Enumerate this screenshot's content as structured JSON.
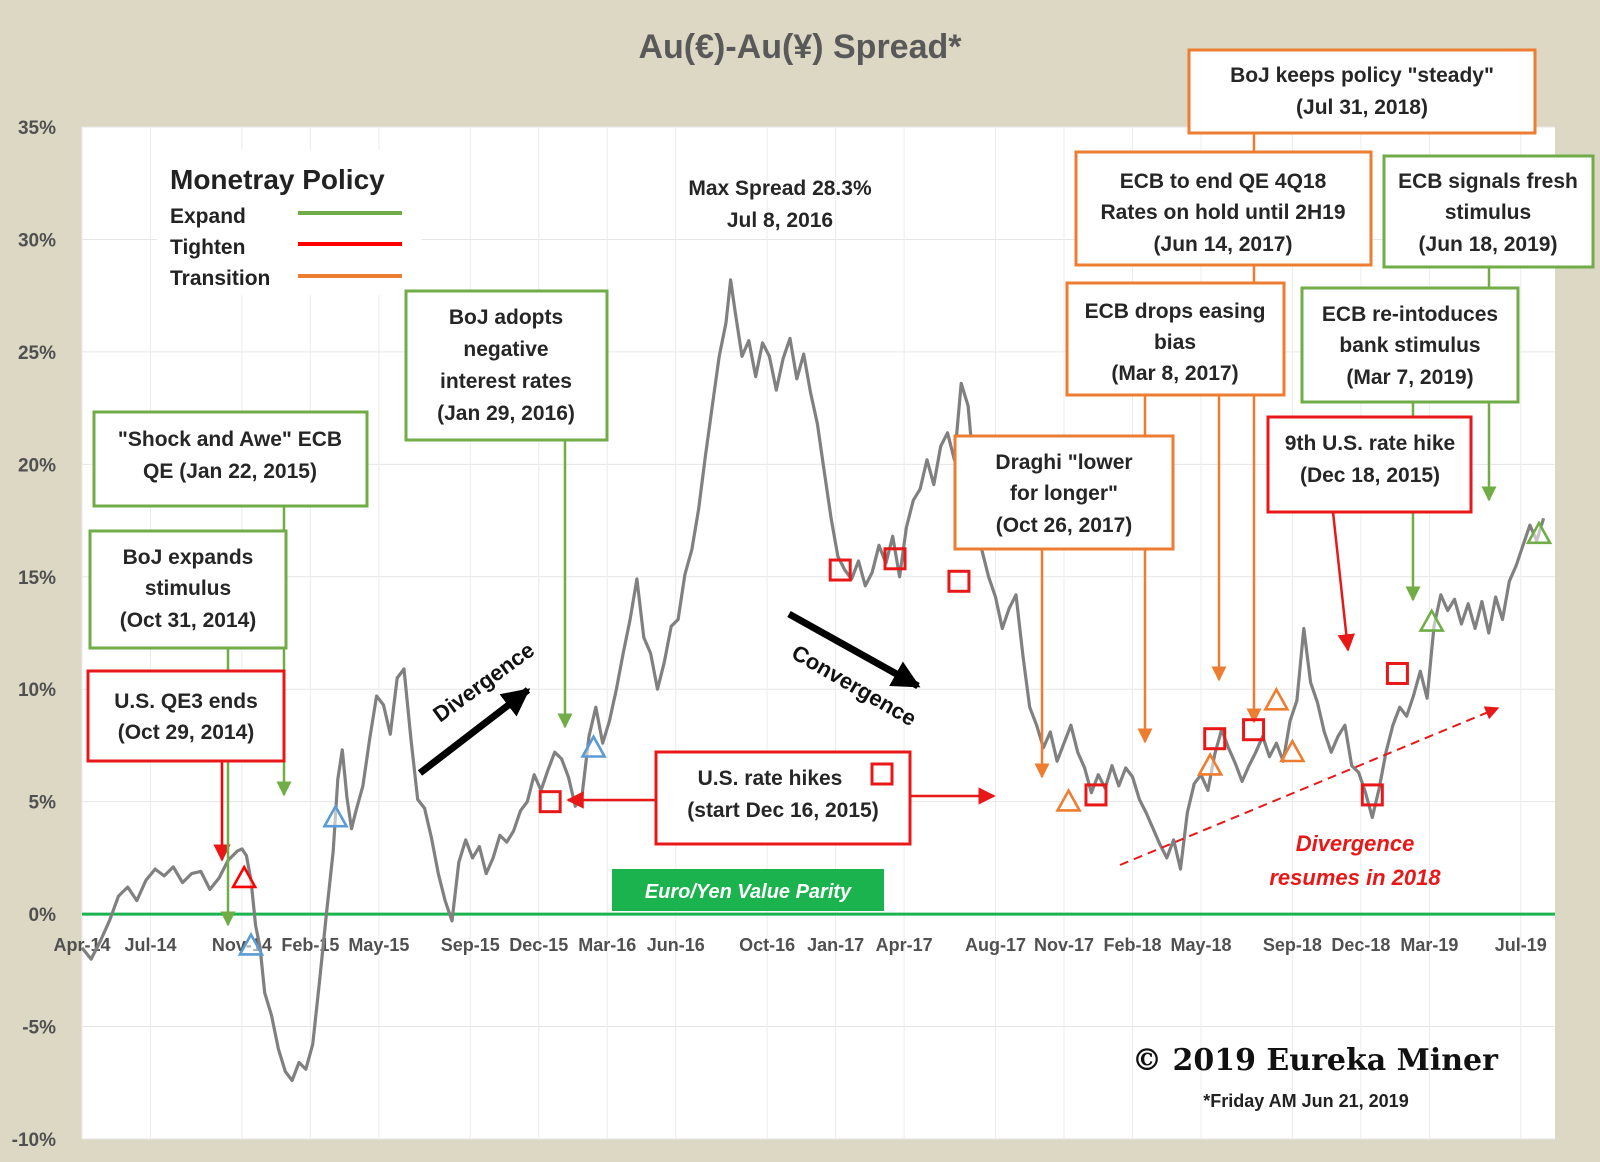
{
  "chart_data": {
    "type": "line",
    "title": "Au(€)-Au(¥) Spread*",
    "ylim": [
      -10,
      35
    ],
    "yticks": [
      35,
      30,
      25,
      20,
      15,
      10,
      5,
      0,
      -5,
      -10
    ],
    "ytick_labels": [
      "35%",
      "30%",
      "25%",
      "20%",
      "15%",
      "10%",
      "5%",
      "0%",
      "-5%",
      "-10%"
    ],
    "x_range": [
      "2014-04",
      "2019-07"
    ],
    "xticks": [
      {
        "label": "Apr-14",
        "month": 0
      },
      {
        "label": "Jul-14",
        "month": 3
      },
      {
        "label": "Nov-14",
        "month": 7
      },
      {
        "label": "Feb-15",
        "month": 10
      },
      {
        "label": "May-15",
        "month": 13
      },
      {
        "label": "Sep-15",
        "month": 17
      },
      {
        "label": "Dec-15",
        "month": 20
      },
      {
        "label": "Mar-16",
        "month": 23
      },
      {
        "label": "Jun-16",
        "month": 26
      },
      {
        "label": "Oct-16",
        "month": 30
      },
      {
        "label": "Jan-17",
        "month": 33
      },
      {
        "label": "Apr-17",
        "month": 36
      },
      {
        "label": "Aug-17",
        "month": 40
      },
      {
        "label": "Nov-17",
        "month": 43
      },
      {
        "label": "Feb-18",
        "month": 46
      },
      {
        "label": "May-18",
        "month": 49
      },
      {
        "label": "Sep-18",
        "month": 53
      },
      {
        "label": "Dec-18",
        "month": 56
      },
      {
        "label": "Mar-19",
        "month": 59
      },
      {
        "label": "Jul-19",
        "month": 63
      }
    ],
    "series": [
      {
        "color": "#808080",
        "points": [
          [
            0.0,
            -1.5
          ],
          [
            0.4,
            -2.0
          ],
          [
            0.8,
            -1.2
          ],
          [
            1.2,
            -0.3
          ],
          [
            1.6,
            0.8
          ],
          [
            2.0,
            1.2
          ],
          [
            2.4,
            0.6
          ],
          [
            2.8,
            1.5
          ],
          [
            3.2,
            2.0
          ],
          [
            3.6,
            1.7
          ],
          [
            4.0,
            2.1
          ],
          [
            4.4,
            1.4
          ],
          [
            4.8,
            1.8
          ],
          [
            5.2,
            1.9
          ],
          [
            5.6,
            1.1
          ],
          [
            6.0,
            1.6
          ],
          [
            6.4,
            2.4
          ],
          [
            6.8,
            2.8
          ],
          [
            7.0,
            2.9
          ],
          [
            7.2,
            2.6
          ],
          [
            7.4,
            1.5
          ],
          [
            7.6,
            -0.5
          ],
          [
            7.8,
            -1.5
          ],
          [
            8.0,
            -3.5
          ],
          [
            8.3,
            -4.5
          ],
          [
            8.6,
            -6.0
          ],
          [
            8.9,
            -7.0
          ],
          [
            9.2,
            -7.4
          ],
          [
            9.5,
            -6.6
          ],
          [
            9.8,
            -6.9
          ],
          [
            10.1,
            -5.8
          ],
          [
            10.4,
            -3.0
          ],
          [
            10.7,
            0.0
          ],
          [
            11.0,
            2.8
          ],
          [
            11.2,
            6.0
          ],
          [
            11.4,
            7.3
          ],
          [
            11.6,
            5.2
          ],
          [
            11.8,
            3.8
          ],
          [
            12.0,
            4.6
          ],
          [
            12.3,
            5.7
          ],
          [
            12.6,
            7.8
          ],
          [
            12.9,
            9.7
          ],
          [
            13.2,
            9.3
          ],
          [
            13.5,
            8.0
          ],
          [
            13.8,
            10.5
          ],
          [
            14.1,
            10.9
          ],
          [
            14.4,
            7.8
          ],
          [
            14.7,
            5.1
          ],
          [
            15.0,
            4.7
          ],
          [
            15.3,
            3.4
          ],
          [
            15.6,
            1.8
          ],
          [
            15.9,
            0.6
          ],
          [
            16.2,
            -0.3
          ],
          [
            16.5,
            2.3
          ],
          [
            16.8,
            3.3
          ],
          [
            17.1,
            2.5
          ],
          [
            17.4,
            3.0
          ],
          [
            17.7,
            1.8
          ],
          [
            18.0,
            2.5
          ],
          [
            18.3,
            3.5
          ],
          [
            18.6,
            3.2
          ],
          [
            18.9,
            3.7
          ],
          [
            19.2,
            4.6
          ],
          [
            19.5,
            5.0
          ],
          [
            19.8,
            6.2
          ],
          [
            20.1,
            5.5
          ],
          [
            20.4,
            6.4
          ],
          [
            20.7,
            7.2
          ],
          [
            21.0,
            6.9
          ],
          [
            21.3,
            6.1
          ],
          [
            21.6,
            4.8
          ],
          [
            21.9,
            5.3
          ],
          [
            22.2,
            7.9
          ],
          [
            22.5,
            9.2
          ],
          [
            22.8,
            7.6
          ],
          [
            23.1,
            8.6
          ],
          [
            23.4,
            10.0
          ],
          [
            23.7,
            11.6
          ],
          [
            24.0,
            13.1
          ],
          [
            24.3,
            14.9
          ],
          [
            24.6,
            12.3
          ],
          [
            24.9,
            11.6
          ],
          [
            25.2,
            10.0
          ],
          [
            25.5,
            11.2
          ],
          [
            25.8,
            12.8
          ],
          [
            26.1,
            13.1
          ],
          [
            26.4,
            15.1
          ],
          [
            26.7,
            16.2
          ],
          [
            27.0,
            18.0
          ],
          [
            27.3,
            20.4
          ],
          [
            27.6,
            22.6
          ],
          [
            27.9,
            24.8
          ],
          [
            28.2,
            26.3
          ],
          [
            28.4,
            28.2
          ],
          [
            28.6,
            26.8
          ],
          [
            28.9,
            24.8
          ],
          [
            29.2,
            25.5
          ],
          [
            29.5,
            23.9
          ],
          [
            29.8,
            25.4
          ],
          [
            30.1,
            24.8
          ],
          [
            30.4,
            23.3
          ],
          [
            30.7,
            24.7
          ],
          [
            31.0,
            25.6
          ],
          [
            31.3,
            23.8
          ],
          [
            31.6,
            24.9
          ],
          [
            31.9,
            23.2
          ],
          [
            32.2,
            21.8
          ],
          [
            32.5,
            19.7
          ],
          [
            32.8,
            17.6
          ],
          [
            33.1,
            15.9
          ],
          [
            33.4,
            15.3
          ],
          [
            33.7,
            14.9
          ],
          [
            34.0,
            15.7
          ],
          [
            34.3,
            14.6
          ],
          [
            34.6,
            15.2
          ],
          [
            34.9,
            16.4
          ],
          [
            35.2,
            15.6
          ],
          [
            35.5,
            16.8
          ],
          [
            35.8,
            15.0
          ],
          [
            36.1,
            17.2
          ],
          [
            36.4,
            18.4
          ],
          [
            36.7,
            18.9
          ],
          [
            37.0,
            20.2
          ],
          [
            37.3,
            19.1
          ],
          [
            37.6,
            20.8
          ],
          [
            37.9,
            21.4
          ],
          [
            38.2,
            20.2
          ],
          [
            38.5,
            23.6
          ],
          [
            38.8,
            22.6
          ],
          [
            39.1,
            19.2
          ],
          [
            39.4,
            16.2
          ],
          [
            39.7,
            15.0
          ],
          [
            40.0,
            14.1
          ],
          [
            40.3,
            12.7
          ],
          [
            40.6,
            13.6
          ],
          [
            40.9,
            14.2
          ],
          [
            41.2,
            11.5
          ],
          [
            41.5,
            9.2
          ],
          [
            41.8,
            8.4
          ],
          [
            42.1,
            7.4
          ],
          [
            42.4,
            8.1
          ],
          [
            42.7,
            6.8
          ],
          [
            43.0,
            7.6
          ],
          [
            43.3,
            8.4
          ],
          [
            43.6,
            7.2
          ],
          [
            43.9,
            6.5
          ],
          [
            44.2,
            5.4
          ],
          [
            44.5,
            6.2
          ],
          [
            44.8,
            5.6
          ],
          [
            45.1,
            6.6
          ],
          [
            45.4,
            5.7
          ],
          [
            45.7,
            6.5
          ],
          [
            46.0,
            6.1
          ],
          [
            46.3,
            5.1
          ],
          [
            46.6,
            4.5
          ],
          [
            46.9,
            3.8
          ],
          [
            47.2,
            3.1
          ],
          [
            47.5,
            2.5
          ],
          [
            47.8,
            3.3
          ],
          [
            48.1,
            2.0
          ],
          [
            48.4,
            4.5
          ],
          [
            48.7,
            5.8
          ],
          [
            49.0,
            6.2
          ],
          [
            49.3,
            5.5
          ],
          [
            49.6,
            7.1
          ],
          [
            49.9,
            8.2
          ],
          [
            50.2,
            7.4
          ],
          [
            50.5,
            6.7
          ],
          [
            50.8,
            5.9
          ],
          [
            51.1,
            6.6
          ],
          [
            51.4,
            7.2
          ],
          [
            51.7,
            7.9
          ],
          [
            52.0,
            7.0
          ],
          [
            52.3,
            7.6
          ],
          [
            52.6,
            6.8
          ],
          [
            52.9,
            8.6
          ],
          [
            53.2,
            9.5
          ],
          [
            53.5,
            12.7
          ],
          [
            53.8,
            10.3
          ],
          [
            54.1,
            9.4
          ],
          [
            54.4,
            8.1
          ],
          [
            54.7,
            7.2
          ],
          [
            55.0,
            7.9
          ],
          [
            55.3,
            8.4
          ],
          [
            55.6,
            6.6
          ],
          [
            55.9,
            6.3
          ],
          [
            56.2,
            5.4
          ],
          [
            56.5,
            4.3
          ],
          [
            56.8,
            5.6
          ],
          [
            57.1,
            7.2
          ],
          [
            57.4,
            8.4
          ],
          [
            57.7,
            9.2
          ],
          [
            58.0,
            8.8
          ],
          [
            58.3,
            9.7
          ],
          [
            58.6,
            10.8
          ],
          [
            58.9,
            9.6
          ],
          [
            59.2,
            12.8
          ],
          [
            59.5,
            14.2
          ],
          [
            59.8,
            13.5
          ],
          [
            60.1,
            14.0
          ],
          [
            60.4,
            12.9
          ],
          [
            60.7,
            13.8
          ],
          [
            61.0,
            12.7
          ],
          [
            61.3,
            13.9
          ],
          [
            61.6,
            12.5
          ],
          [
            61.9,
            14.1
          ],
          [
            62.2,
            13.1
          ],
          [
            62.5,
            14.8
          ],
          [
            62.8,
            15.5
          ],
          [
            63.1,
            16.4
          ],
          [
            63.4,
            17.3
          ],
          [
            63.7,
            16.6
          ],
          [
            64.0,
            17.6
          ]
        ]
      }
    ],
    "parity_line": {
      "y": 0,
      "color": "#1ab34d",
      "label": "Euro/Yen Value Parity"
    },
    "annotations": {
      "max_spread": [
        "Max Spread 28.3%",
        "Jul 8, 2016"
      ],
      "divergence": "Divergence",
      "convergence": "Convergence",
      "divergence_resumes": [
        "Divergence",
        "resumes in 2018"
      ]
    },
    "legend": {
      "title": "Monetray Policy",
      "items": [
        {
          "label": "Expand",
          "color": "#70ad47"
        },
        {
          "label": "Tighten",
          "color": "#ff0000"
        },
        {
          "label": "Transition",
          "color": "#ed7d31"
        }
      ]
    },
    "callouts": {
      "qe3_ends": [
        "U.S. QE3 ends",
        "(Oct 29, 2014)"
      ],
      "boj_expands": [
        "BoJ expands",
        "stimulus",
        "(Oct 31, 2014)"
      ],
      "shock_awe": [
        "\"Shock and Awe\" ECB",
        "QE (Jan 22, 2015)"
      ],
      "boj_negative": [
        "BoJ adopts",
        "negative",
        "interest rates",
        "(Jan 29, 2016)"
      ],
      "us_rate_hikes": [
        "U.S. rate hikes",
        "(start Dec 16, 2015)"
      ],
      "draghi": [
        "Draghi \"lower",
        "for longer\"",
        "(Oct 26, 2017)"
      ],
      "ecb_drops": [
        "ECB drops easing",
        "bias",
        "(Mar 8, 2017)"
      ],
      "ecb_end_qe": [
        "ECB to end QE 4Q18",
        "Rates on hold until 2H19",
        "(Jun 14, 2017)"
      ],
      "boj_steady": [
        "BoJ keeps policy \"steady\"",
        "(Jul 31, 2018)"
      ],
      "ecb_fresh": [
        "ECB signals fresh",
        "stimulus",
        "(Jun 18, 2019)"
      ],
      "ecb_reintro": [
        "ECB re-intoduces",
        "bank stimulus",
        "(Mar 7, 2019)"
      ],
      "ninth_hike": [
        "9th U.S. rate hike",
        "(Dec 18, 2015)"
      ]
    },
    "markers": {
      "squares": [
        [
          20.5,
          5.0
        ],
        [
          33.2,
          15.3
        ],
        [
          35.6,
          15.8
        ],
        [
          38.4,
          14.8
        ],
        [
          44.4,
          5.3
        ],
        [
          49.6,
          7.8
        ],
        [
          51.3,
          8.2
        ],
        [
          56.5,
          5.3
        ],
        [
          57.6,
          10.7
        ]
      ],
      "triangles": [
        {
          "x": 7.1,
          "y": 1.6,
          "color": "#ff0000"
        },
        {
          "x": 7.4,
          "y": -1.4,
          "color": "#5b9bd5"
        },
        {
          "x": 11.1,
          "y": 4.3,
          "color": "#5b9bd5"
        },
        {
          "x": 22.4,
          "y": 7.4,
          "color": "#5b9bd5"
        },
        {
          "x": 43.2,
          "y": 5.0,
          "color": "#ed7d31"
        },
        {
          "x": 49.4,
          "y": 6.6,
          "color": "#ed7d31"
        },
        {
          "x": 52.3,
          "y": 9.5,
          "color": "#ed7d31"
        },
        {
          "x": 53.0,
          "y": 7.2,
          "color": "#ed7d31"
        },
        {
          "x": 59.1,
          "y": 13.0,
          "color": "#70ad47"
        },
        {
          "x": 63.8,
          "y": 16.9,
          "color": "#70ad47"
        }
      ]
    },
    "copyright": "© 2019 Eureka Miner",
    "footnote": "*Friday AM Jun 21, 2019"
  }
}
